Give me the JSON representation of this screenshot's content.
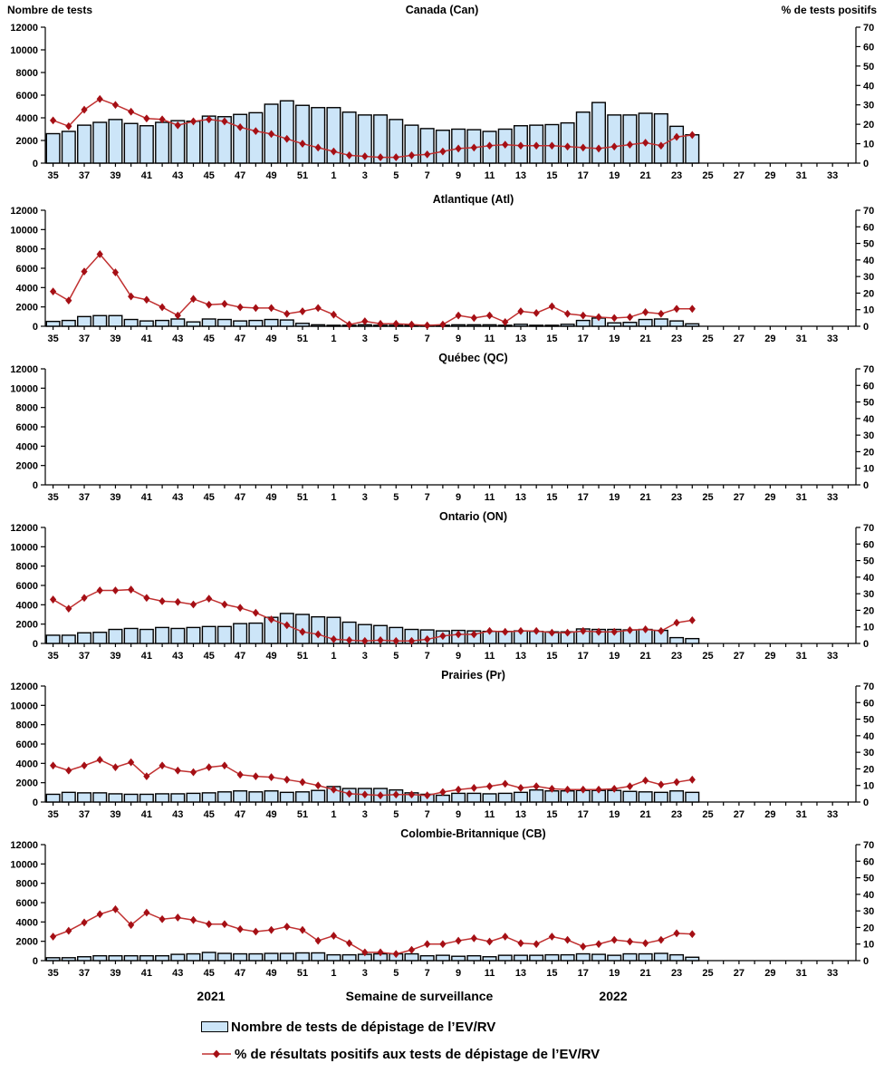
{
  "chart_data": {
    "type": "combo",
    "x_axis_title": "Semaine de surveillance",
    "x_categories": [
      "35",
      "36",
      "37",
      "38",
      "39",
      "40",
      "41",
      "42",
      "43",
      "44",
      "45",
      "46",
      "47",
      "48",
      "49",
      "50",
      "51",
      "52",
      "1",
      "2",
      "3",
      "4",
      "5",
      "6",
      "7",
      "8",
      "9",
      "10",
      "11",
      "12",
      "13",
      "14",
      "15",
      "16",
      "17",
      "18",
      "19",
      "20",
      "21",
      "22",
      "23",
      "24",
      "25",
      "26",
      "27",
      "28",
      "29",
      "30",
      "31",
      "32",
      "33",
      "34"
    ],
    "x_label_every": 2,
    "left_axis": {
      "label": "Nombre de tests",
      "ticks": [
        0,
        2000,
        4000,
        6000,
        8000,
        10000,
        12000
      ],
      "max": 12000
    },
    "right_axis": {
      "label": "% de tests positifs",
      "ticks": [
        0,
        10,
        20,
        30,
        40,
        50,
        60,
        70
      ],
      "max": 70
    },
    "year_left": "2021",
    "year_right": "2022",
    "panels": [
      {
        "id": "canada",
        "title": "Canada (Can)",
        "bars": [
          2600,
          2800,
          3350,
          3600,
          3850,
          3500,
          3300,
          3600,
          3750,
          3700,
          4150,
          4100,
          4300,
          4450,
          5200,
          5500,
          5100,
          4900,
          4900,
          4500,
          4250,
          4250,
          3850,
          3350,
          3050,
          2900,
          3000,
          2950,
          2800,
          3000,
          3300,
          3350,
          3400,
          3550,
          4500,
          5350,
          4250,
          4250,
          4400,
          4350,
          3250,
          2500
        ],
        "pct": [
          22,
          19,
          27.5,
          33,
          30,
          26.5,
          23,
          22.5,
          19.5,
          21.5,
          22.5,
          21.5,
          18.5,
          16.5,
          15,
          12.5,
          10,
          8,
          6,
          4,
          3.5,
          3,
          3,
          4,
          4.5,
          6,
          7.5,
          8,
          9,
          9.5,
          9,
          9,
          9,
          8.5,
          8,
          7.5,
          8.5,
          9.5,
          10.5,
          9,
          13.5,
          14.5
        ]
      },
      {
        "id": "atlantique",
        "title": "Atlantique (Atl)",
        "bars": [
          500,
          600,
          1000,
          1100,
          1100,
          700,
          550,
          600,
          750,
          450,
          750,
          700,
          550,
          600,
          700,
          650,
          300,
          150,
          100,
          100,
          150,
          100,
          100,
          100,
          100,
          100,
          150,
          150,
          150,
          100,
          200,
          100,
          100,
          200,
          600,
          850,
          350,
          400,
          700,
          750,
          550,
          250
        ],
        "pct": [
          21,
          15.5,
          33,
          43.5,
          32.5,
          18,
          16,
          11.5,
          6.5,
          16.5,
          13,
          13.5,
          11.5,
          11,
          11,
          7.5,
          9,
          11,
          7,
          1,
          3,
          1.5,
          1.5,
          1,
          0.5,
          1,
          6.5,
          5,
          6.5,
          2.5,
          9,
          8,
          12,
          7.5,
          6.5,
          5.5,
          5,
          5.5,
          8.5,
          7.5,
          10.5,
          10.5
        ]
      },
      {
        "id": "quebec",
        "title": "Québec (QC)",
        "bars": [],
        "pct": []
      },
      {
        "id": "ontario",
        "title": "Ontario (ON)",
        "bars": [
          850,
          850,
          1100,
          1150,
          1450,
          1550,
          1450,
          1650,
          1550,
          1650,
          1750,
          1750,
          2050,
          2100,
          2700,
          3100,
          3000,
          2750,
          2700,
          2200,
          1950,
          1850,
          1650,
          1450,
          1400,
          1300,
          1350,
          1300,
          1250,
          1250,
          1300,
          1250,
          1200,
          1200,
          1500,
          1450,
          1450,
          1400,
          1450,
          1350,
          600,
          500
        ],
        "pct": [
          26.5,
          21,
          27.5,
          32,
          32,
          32.5,
          27.5,
          25.5,
          25,
          23.5,
          27,
          23.5,
          21.5,
          18.5,
          14.5,
          11,
          7,
          5.5,
          2.5,
          2,
          1.5,
          2,
          1.5,
          1.5,
          2.5,
          4.5,
          5.5,
          5.5,
          7.5,
          7,
          7.5,
          7.5,
          6.5,
          6.5,
          7.5,
          7,
          7,
          8,
          8.5,
          7.5,
          12.5,
          14
        ]
      },
      {
        "id": "prairies",
        "title": "Prairies (Pr)",
        "bars": [
          800,
          1000,
          950,
          950,
          850,
          800,
          800,
          850,
          850,
          900,
          950,
          1050,
          1150,
          1050,
          1150,
          1000,
          1050,
          1200,
          1600,
          1400,
          1400,
          1400,
          1250,
          950,
          800,
          700,
          900,
          900,
          850,
          900,
          1000,
          1250,
          1150,
          1150,
          1200,
          1200,
          1200,
          1100,
          1050,
          1000,
          1150,
          1000
        ],
        "pct": [
          22,
          19,
          22,
          25.5,
          21,
          24,
          15.5,
          22,
          19,
          18,
          21,
          22,
          16.5,
          15.5,
          15,
          13.5,
          12,
          10,
          7.5,
          5,
          4.5,
          4,
          4.5,
          4.5,
          4,
          6,
          7.5,
          8.5,
          9.5,
          11,
          8.5,
          9.5,
          8,
          7.5,
          7.5,
          7.5,
          8,
          9.5,
          13,
          10.5,
          12,
          13.5
        ]
      },
      {
        "id": "colombie-britannique",
        "title": "Colombie-Britannique (CB)",
        "bars": [
          300,
          300,
          400,
          500,
          500,
          500,
          500,
          500,
          650,
          700,
          850,
          750,
          700,
          700,
          750,
          750,
          800,
          800,
          600,
          600,
          650,
          700,
          700,
          700,
          500,
          550,
          450,
          500,
          400,
          550,
          550,
          550,
          600,
          600,
          700,
          650,
          550,
          700,
          700,
          750,
          600,
          350
        ],
        "pct": [
          14.5,
          18,
          23,
          28,
          31,
          21.5,
          29,
          25,
          26,
          24.5,
          22,
          22,
          19,
          17.5,
          18.5,
          20.5,
          18.5,
          12,
          15,
          10.5,
          5,
          5,
          4,
          6.5,
          10,
          10,
          12,
          13.5,
          11.5,
          14.5,
          10.5,
          10,
          14.5,
          12.5,
          8.5,
          10,
          12.5,
          11.5,
          10.5,
          12.5,
          16.5,
          16
        ]
      }
    ]
  },
  "legend": {
    "tests_label": "Nombre de tests de dépistage de l’EV/RV",
    "positivity_label": "% de résultats positifs aux tests de dépistage de l’EV/RV"
  },
  "colors": {
    "bar_fill": "#CCE5F8",
    "bar_stroke": "#000000",
    "line": "#C03030",
    "marker": "#A50F15",
    "axis": "#000000"
  }
}
